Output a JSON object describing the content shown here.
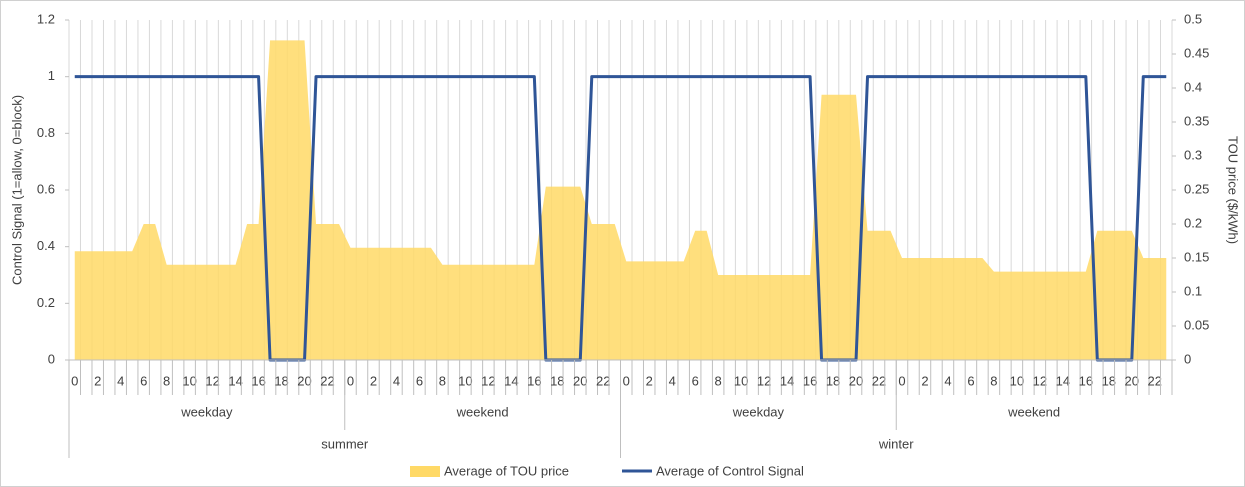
{
  "chart_data": {
    "type": "area_line_combo",
    "y_label": "Control Signal (1=allow, 0=block)",
    "y2_label": "TOU price ($/kWh)",
    "categories": [
      "0",
      null,
      "2",
      null,
      "4",
      null,
      "6",
      null,
      "8",
      null,
      "10",
      null,
      "12",
      null,
      "14",
      null,
      "16",
      null,
      "18",
      null,
      "20",
      null,
      "22",
      null,
      "0",
      null,
      "2",
      null,
      "4",
      null,
      "6",
      null,
      "8",
      null,
      "10",
      null,
      "12",
      null,
      "14",
      null,
      "16",
      null,
      "18",
      null,
      "20",
      null,
      "22",
      null,
      "0",
      null,
      "2",
      null,
      "4",
      null,
      "6",
      null,
      "8",
      null,
      "10",
      null,
      "12",
      null,
      "14",
      null,
      "16",
      null,
      "18",
      null,
      "20",
      null,
      "22",
      null,
      "0",
      null,
      "2",
      null,
      "4",
      null,
      "6",
      null,
      "8",
      null,
      "10",
      null,
      "12",
      null,
      "14",
      null,
      "16",
      null,
      "18",
      null,
      "20",
      null,
      "22",
      null
    ],
    "day_types": [
      "weekday",
      "weekend",
      "weekday",
      "weekend"
    ],
    "seasons": [
      "summer",
      "winter"
    ],
    "series": [
      {
        "name": "Average of TOU price",
        "kind": "area",
        "axis": "y2",
        "color": "#ffd966",
        "values": [
          0.16,
          0.16,
          0.16,
          0.16,
          0.16,
          0.16,
          0.2,
          0.2,
          0.14,
          0.14,
          0.14,
          0.14,
          0.14,
          0.14,
          0.14,
          0.2,
          0.2,
          0.47,
          0.47,
          0.47,
          0.47,
          0.2,
          0.2,
          0.2,
          0.165,
          0.165,
          0.165,
          0.165,
          0.165,
          0.165,
          0.165,
          0.165,
          0.14,
          0.14,
          0.14,
          0.14,
          0.14,
          0.14,
          0.14,
          0.14,
          0.14,
          0.255,
          0.255,
          0.255,
          0.255,
          0.2,
          0.2,
          0.2,
          0.145,
          0.145,
          0.145,
          0.145,
          0.145,
          0.145,
          0.19,
          0.19,
          0.125,
          0.125,
          0.125,
          0.125,
          0.125,
          0.125,
          0.125,
          0.125,
          0.125,
          0.39,
          0.39,
          0.39,
          0.39,
          0.19,
          0.19,
          0.19,
          0.15,
          0.15,
          0.15,
          0.15,
          0.15,
          0.15,
          0.15,
          0.15,
          0.13,
          0.13,
          0.13,
          0.13,
          0.13,
          0.13,
          0.13,
          0.13,
          0.13,
          0.19,
          0.19,
          0.19,
          0.19,
          0.15,
          0.15,
          0.15
        ]
      },
      {
        "name": "Average of Control Signal",
        "kind": "line",
        "axis": "y",
        "color": "#2f5597",
        "values": [
          1,
          1,
          1,
          1,
          1,
          1,
          1,
          1,
          1,
          1,
          1,
          1,
          1,
          1,
          1,
          1,
          1,
          0,
          0,
          0,
          0,
          1,
          1,
          1,
          1,
          1,
          1,
          1,
          1,
          1,
          1,
          1,
          1,
          1,
          1,
          1,
          1,
          1,
          1,
          1,
          1,
          0,
          0,
          0,
          0,
          1,
          1,
          1,
          1,
          1,
          1,
          1,
          1,
          1,
          1,
          1,
          1,
          1,
          1,
          1,
          1,
          1,
          1,
          1,
          1,
          0,
          0,
          0,
          0,
          1,
          1,
          1,
          1,
          1,
          1,
          1,
          1,
          1,
          1,
          1,
          1,
          1,
          1,
          1,
          1,
          1,
          1,
          1,
          1,
          0,
          0,
          0,
          0,
          1,
          1,
          1
        ]
      }
    ],
    "ylim": [
      0,
      1.2
    ],
    "yticks": [
      0,
      0.2,
      0.4,
      0.6,
      0.8,
      1,
      1.2
    ],
    "y2lim": [
      0,
      0.5
    ],
    "y2ticks": [
      0,
      0.05,
      0.1,
      0.15,
      0.2,
      0.25,
      0.3,
      0.35,
      0.4,
      0.45,
      0.5
    ],
    "grid": true,
    "legend": "bottom"
  }
}
